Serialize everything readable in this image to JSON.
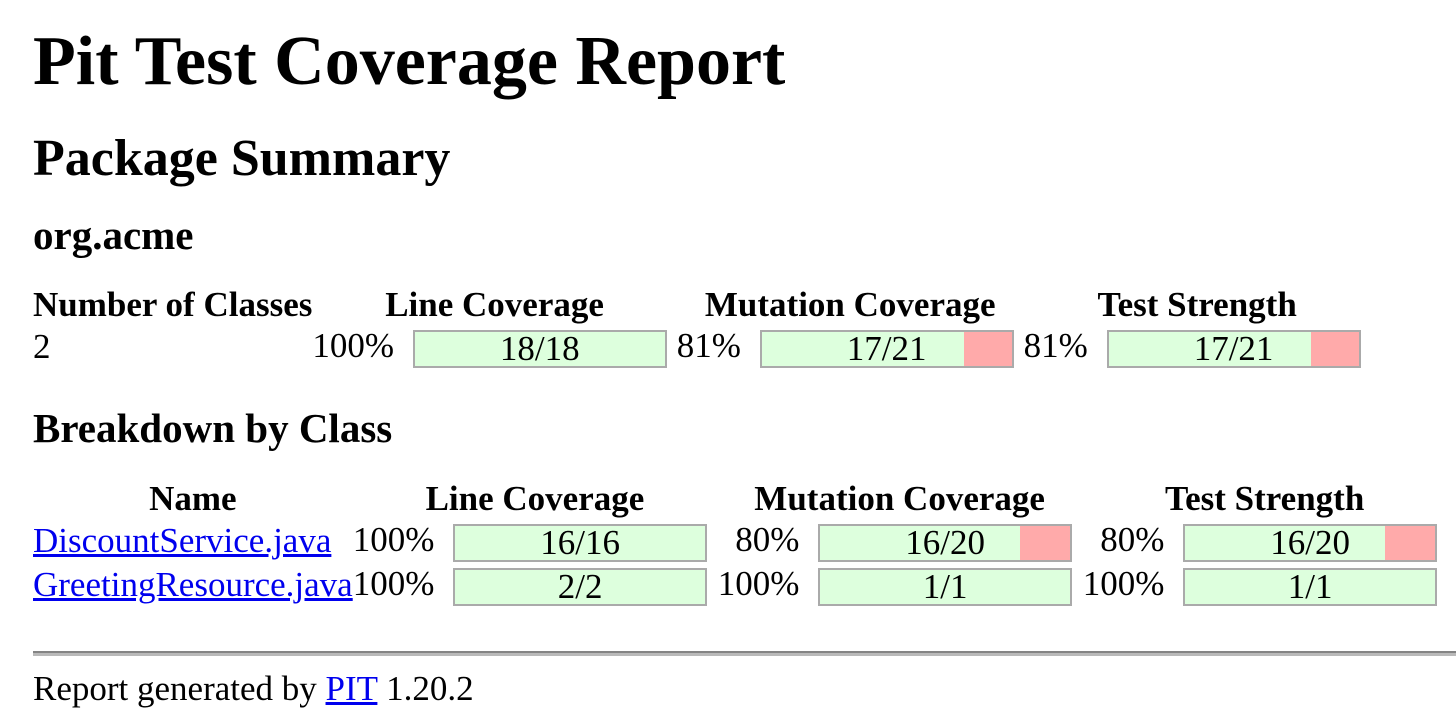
{
  "page": {
    "title": "Pit Test Coverage Report",
    "package_summary_heading": "Package Summary",
    "package_name": "org.acme",
    "breakdown_heading": "Breakdown by Class"
  },
  "colors": {
    "bar_complete_green": "#DDFFDD",
    "bar_incomplete_red": "#FFAAAA",
    "bar_border": "#AAAAAA",
    "link_blue": "#0000EE"
  },
  "package_table": {
    "headers": [
      "Number of Classes",
      "Line Coverage",
      "Mutation Coverage",
      "Test Strength"
    ],
    "rows": [
      {
        "number_of_classes": "2",
        "line_coverage": {
          "percent": "100%",
          "legend": "18/18",
          "value": 100
        },
        "mutation_coverage": {
          "percent": "81%",
          "legend": "17/21",
          "value": 81
        },
        "test_strength": {
          "percent": "81%",
          "legend": "17/21",
          "value": 81
        }
      }
    ]
  },
  "class_table": {
    "headers": [
      "Name",
      "Line Coverage",
      "Mutation Coverage",
      "Test Strength"
    ],
    "rows": [
      {
        "name": "DiscountService.java",
        "line_coverage": {
          "percent": "100%",
          "legend": "16/16",
          "value": 100
        },
        "mutation_coverage": {
          "percent": "80%",
          "legend": "16/20",
          "value": 80
        },
        "test_strength": {
          "percent": "80%",
          "legend": "16/20",
          "value": 80
        }
      },
      {
        "name": "GreetingResource.java",
        "line_coverage": {
          "percent": "100%",
          "legend": "2/2",
          "value": 100
        },
        "mutation_coverage": {
          "percent": "100%",
          "legend": "1/1",
          "value": 100
        },
        "test_strength": {
          "percent": "100%",
          "legend": "1/1",
          "value": 100
        }
      }
    ]
  },
  "footer": {
    "prefix": "Report generated by",
    "link_label": "PIT",
    "version": "1.20.2"
  }
}
